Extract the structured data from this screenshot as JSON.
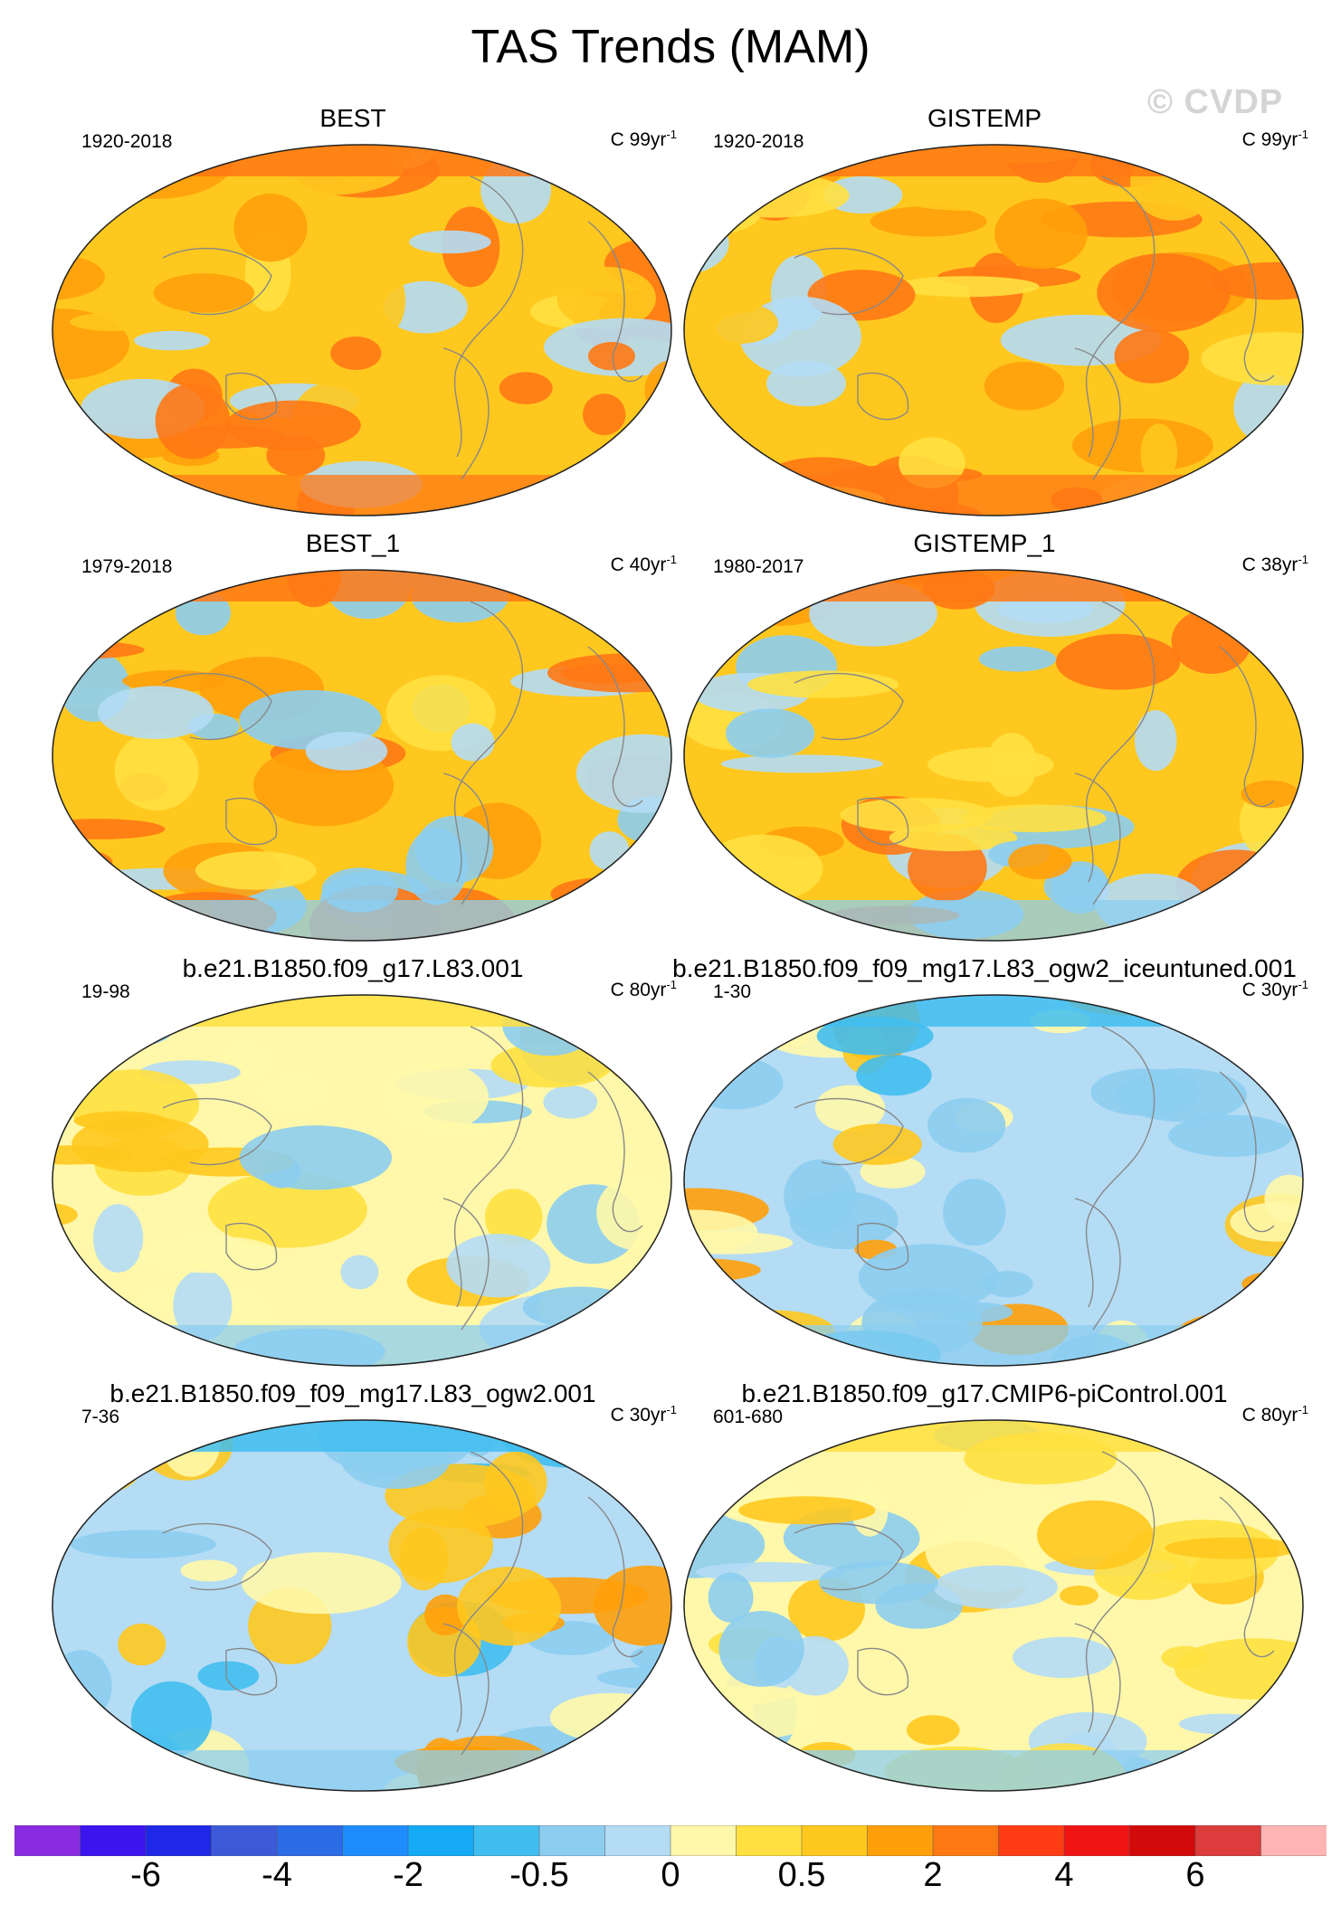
{
  "title": "TAS Trends (MAM)",
  "watermark": "© CVDP",
  "panels": [
    {
      "title": "BEST",
      "period": "1920-2018",
      "units": "C 99yr",
      "units_sup": "-1",
      "pattern": "warm"
    },
    {
      "title": "GISTEMP",
      "period": "1920-2018",
      "units": "C 99yr",
      "units_sup": "-1",
      "pattern": "warm"
    },
    {
      "title": "BEST_1",
      "period": "1979-2018",
      "units": "C 40yr",
      "units_sup": "-1",
      "pattern": "recent"
    },
    {
      "title": "GISTEMP_1",
      "period": "1980-2017",
      "units": "C 38yr",
      "units_sup": "-1",
      "pattern": "recent"
    },
    {
      "title": "b.e21.B1850.f09_g17.L83.001",
      "period": "19-98",
      "units": "C 80yr",
      "units_sup": "-1",
      "pattern": "neutral"
    },
    {
      "title": "b.e21.B1850.f09_f09_mg17.L83_ogw2_iceuntuned.001",
      "period": "1-30",
      "units": "C 30yr",
      "units_sup": "-1",
      "pattern": "cool"
    },
    {
      "title": "b.e21.B1850.f09_f09_mg17.L83_ogw2.001",
      "period": "7-36",
      "units": "C 30yr",
      "units_sup": "-1",
      "pattern": "cool"
    },
    {
      "title": "b.e21.B1850.f09_g17.CMIP6-piControl.001",
      "period": "601-680",
      "units": "C 80yr",
      "units_sup": "-1",
      "pattern": "neutral"
    }
  ],
  "colorbar": {
    "colors": [
      "#8a2be2",
      "#3c14ee",
      "#1e28e6",
      "#3c5ad8",
      "#2b6be6",
      "#1e8cff",
      "#14aaf5",
      "#41bef0",
      "#8ccdf0",
      "#b4dcf5",
      "#fff8aa",
      "#ffe040",
      "#ffc81e",
      "#ffa00a",
      "#ff7814",
      "#ff3c14",
      "#f01414",
      "#d20a0a",
      "#dc3c3c",
      "#ffb4b4"
    ],
    "labels": [
      "-6",
      "-4",
      "-2",
      "-0.5",
      "0",
      "0.5",
      "2",
      "4",
      "6"
    ]
  },
  "legend_colors": {
    "ocean_border": "#888888",
    "missing": "#ffffff"
  }
}
